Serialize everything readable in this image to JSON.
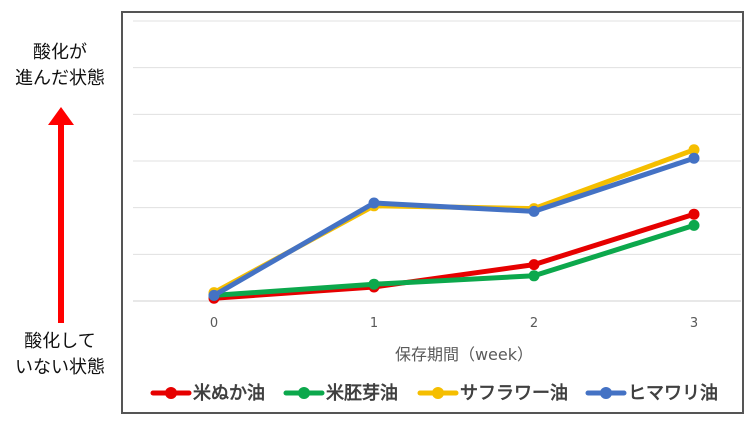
{
  "side_labels": {
    "top": [
      "酸化が",
      "進んだ状態"
    ],
    "bottom": [
      "酸化して",
      "いない状態"
    ],
    "arrow_color": "#ff0000"
  },
  "chart_data": {
    "type": "line",
    "title": "",
    "xlabel": "保存期間（week）",
    "ylabel": "",
    "x": [
      0,
      1,
      2,
      3
    ],
    "ylim": [
      0,
      10
    ],
    "grid": true,
    "legend_placement": "bottom",
    "series": [
      {
        "name": "米ぬか油",
        "color": "#e60000",
        "values": [
          0.1,
          0.5,
          1.3,
          3.1
        ]
      },
      {
        "name": "米胚芽油",
        "color": "#0ca84c",
        "values": [
          0.2,
          0.6,
          0.9,
          2.7
        ]
      },
      {
        "name": "サフラワー油",
        "color": "#f5be00",
        "values": [
          0.3,
          3.4,
          3.3,
          5.4
        ]
      },
      {
        "name": "ヒマワリ油",
        "color": "#4472c4",
        "values": [
          0.2,
          3.5,
          3.2,
          5.1
        ]
      }
    ]
  }
}
